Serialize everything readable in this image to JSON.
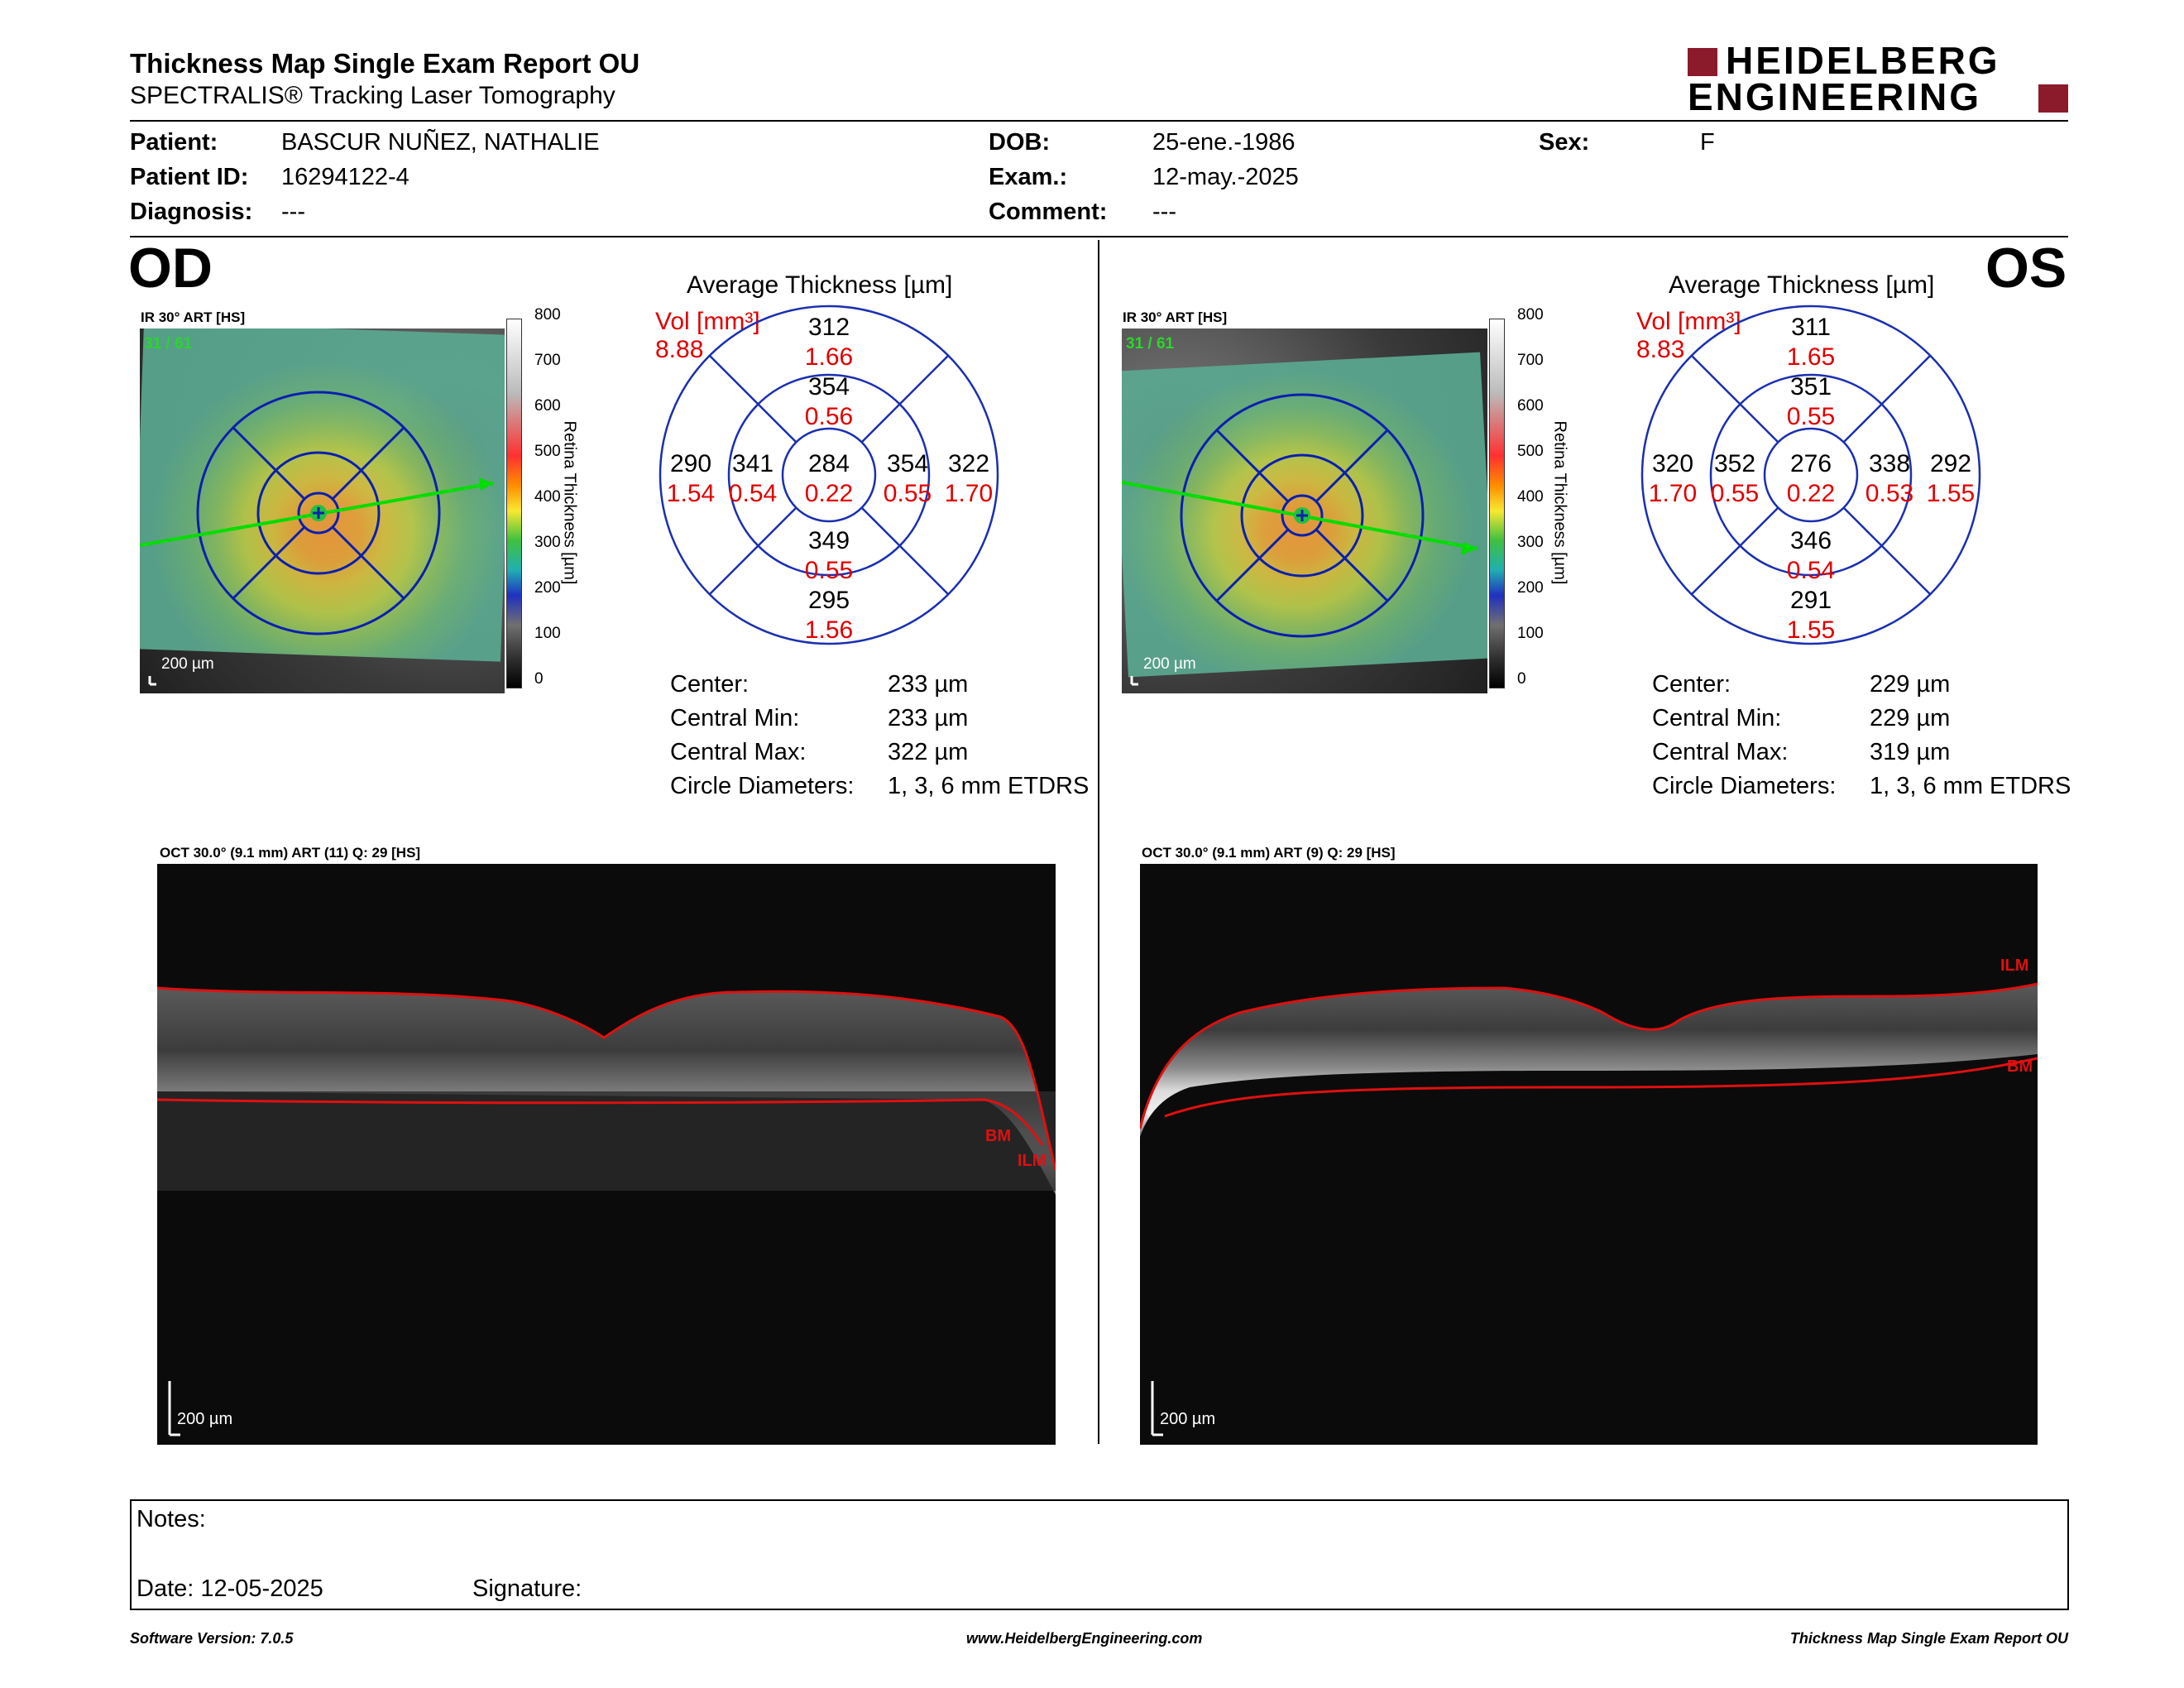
{
  "header": {
    "title": "Thickness Map Single Exam Report OU",
    "subtitle": "SPECTRALIS® Tracking Laser Tomography",
    "logo_line1": "HEIDELBERG",
    "logo_line2": "ENGINEERING"
  },
  "patient": {
    "patient_label": "Patient:",
    "patient_value": "BASCUR NUÑEZ, NATHALIE",
    "id_label": "Patient ID:",
    "id_value": "16294122-4",
    "diagnosis_label": "Diagnosis:",
    "diagnosis_value": "---",
    "dob_label": "DOB:",
    "dob_value": "25-ene.-1986",
    "exam_label": "Exam.:",
    "exam_value": "12-may.-2025",
    "comment_label": "Comment:",
    "comment_value": "---",
    "sex_label": "Sex:",
    "sex_value": "F"
  },
  "od": {
    "eye": "OD",
    "ir_header": "IR 30° ART [HS]",
    "ir_count": "31 / 61",
    "scale_label": "200 µm",
    "colorbar_ticks": [
      "800",
      "700",
      "600",
      "500",
      "400",
      "300",
      "200",
      "100",
      "0"
    ],
    "colorbar_title": "Retina Thickness [µm]",
    "avg_title": "Average Thickness [µm]",
    "vol_label": "Vol [mm³]",
    "vol_value": "8.88",
    "sectors": {
      "outer_top": "312",
      "outer_top_vol": "1.66",
      "inner_top": "354",
      "inner_top_vol": "0.56",
      "outer_left": "290",
      "outer_left_vol": "1.54",
      "inner_left": "341",
      "inner_left_vol": "0.54",
      "center": "284",
      "center_vol": "0.22",
      "inner_right": "354",
      "inner_right_vol": "0.55",
      "outer_right": "322",
      "outer_right_vol": "1.70",
      "inner_bottom": "349",
      "inner_bottom_vol": "0.55",
      "outer_bottom": "295",
      "outer_bottom_vol": "1.56"
    },
    "stats": {
      "center_label": "Center:",
      "center_value": "233 µm",
      "min_label": "Central Min:",
      "min_value": "233 µm",
      "max_label": "Central Max:",
      "max_value": "322 µm",
      "diam_label": "Circle Diameters:",
      "diam_value": "1, 3, 6 mm ETDRS"
    },
    "oct_header": "OCT 30.0° (9.1 mm) ART (11) Q: 29 [HS]",
    "oct_scale": "200 µm",
    "oct_label_bm": "BM",
    "oct_label_ilm": "ILM"
  },
  "os": {
    "eye": "OS",
    "ir_header": "IR 30° ART [HS]",
    "ir_count": "31 / 61",
    "scale_label": "200 µm",
    "colorbar_ticks": [
      "800",
      "700",
      "600",
      "500",
      "400",
      "300",
      "200",
      "100",
      "0"
    ],
    "colorbar_title": "Retina Thickness [µm]",
    "avg_title": "Average Thickness [µm]",
    "vol_label": "Vol [mm³]",
    "vol_value": "8.83",
    "sectors": {
      "outer_top": "311",
      "outer_top_vol": "1.65",
      "inner_top": "351",
      "inner_top_vol": "0.55",
      "outer_left": "320",
      "outer_left_vol": "1.70",
      "inner_left": "352",
      "inner_left_vol": "0.55",
      "center": "276",
      "center_vol": "0.22",
      "inner_right": "338",
      "inner_right_vol": "0.53",
      "outer_right": "292",
      "outer_right_vol": "1.55",
      "inner_bottom": "346",
      "inner_bottom_vol": "0.54",
      "outer_bottom": "291",
      "outer_bottom_vol": "1.55"
    },
    "stats": {
      "center_label": "Center:",
      "center_value": "229 µm",
      "min_label": "Central Min:",
      "min_value": "229 µm",
      "max_label": "Central Max:",
      "max_value": "319 µm",
      "diam_label": "Circle Diameters:",
      "diam_value": "1, 3, 6 mm ETDRS"
    },
    "oct_header": "OCT 30.0° (9.1 mm) ART (9) Q: 29 [HS]",
    "oct_scale": "200 µm",
    "oct_label_bm": "BM",
    "oct_label_ilm": "ILM"
  },
  "notes": {
    "notes_label": "Notes:",
    "date_label": "Date: 12-05-2025",
    "signature_label": "Signature:"
  },
  "footer": {
    "software": "Software Version: 7.0.5",
    "website": "www.HeidelbergEngineering.com",
    "report_name": "Thickness Map Single Exam Report OU"
  },
  "colors": {
    "accent_red": "#8b1a2b",
    "value_red": "#e00000",
    "grid_blue": "#1a2fb0",
    "scan_line": "#00dd00"
  }
}
